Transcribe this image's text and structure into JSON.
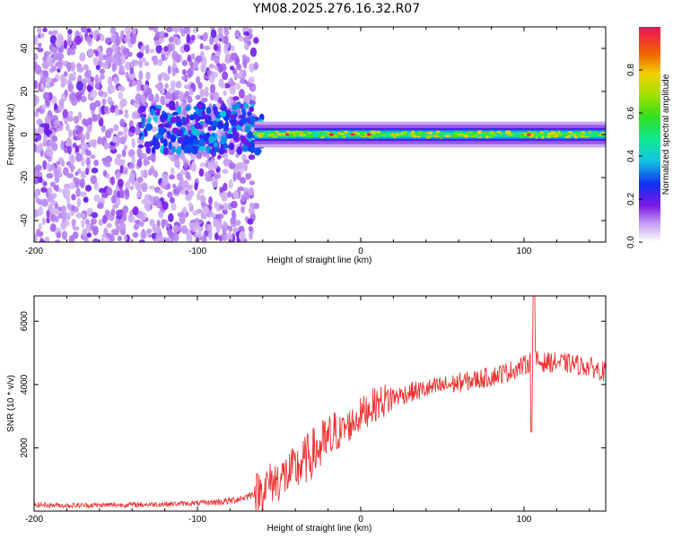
{
  "title": "YM08.2025.276.16.32.R07",
  "colors": {
    "snr_line": "#ee3333",
    "axis": "#000000"
  },
  "chart_data": [
    {
      "type": "heatmap",
      "xlabel": "Height of straight line (km)",
      "ylabel": "Frequency (Hz)",
      "xlim": [
        -200,
        150
      ],
      "ylim": [
        -50,
        50
      ],
      "xticks": [
        -200,
        -100,
        0,
        100
      ],
      "xtick_labels": [
        "-200",
        "-100",
        "0",
        "100"
      ],
      "yticks": [
        -40,
        -20,
        0,
        20,
        40
      ],
      "ytick_labels": [
        "-40",
        "-20",
        "0",
        "20",
        "40"
      ],
      "colorbar": {
        "label": "Normalized spectral amplitude",
        "range": [
          0,
          1
        ],
        "ticks": [
          0.0,
          0.2,
          0.4,
          0.6,
          0.8
        ],
        "tick_labels": [
          "0.0",
          "0.2",
          "0.4",
          "0.6",
          "0.8"
        ]
      },
      "description_regions": [
        {
          "x_range": [
            -200,
            -65
          ],
          "pattern": "broadband noise, low amplitude 0.1-0.3"
        },
        {
          "x_range": [
            -130,
            -60
          ],
          "pattern": "energy concentrating near 0 Hz, amplitude 0.2-0.5"
        },
        {
          "x_range": [
            -60,
            150
          ],
          "pattern": "narrow band at 0 Hz, amplitude 0.4-1.0"
        }
      ],
      "peaks": [
        {
          "x": -45,
          "freq": 0,
          "amp": 0.95
        },
        {
          "x": -18,
          "freq": 0,
          "amp": 1.0
        },
        {
          "x": -5,
          "freq": 0,
          "amp": 0.95
        },
        {
          "x": 5,
          "freq": 0,
          "amp": 1.0
        },
        {
          "x": 103,
          "freq": 0,
          "amp": 0.95
        }
      ]
    },
    {
      "type": "line",
      "xlabel": "Height of straight line (km)",
      "ylabel": "SNR (10 * v/v)",
      "xlim": [
        -200,
        150
      ],
      "ylim": [
        0,
        6800
      ],
      "xticks": [
        -200,
        -100,
        0,
        100
      ],
      "xtick_labels": [
        "-200",
        "-100",
        "0",
        "100"
      ],
      "yticks": [
        2000,
        4000,
        6000
      ],
      "ytick_labels": [
        "2000",
        "4000",
        "6000"
      ],
      "series": [
        {
          "name": "SNR",
          "x": [
            -200,
            -180,
            -160,
            -140,
            -120,
            -100,
            -90,
            -80,
            -70,
            -60,
            -55,
            -50,
            -45,
            -40,
            -35,
            -30,
            -25,
            -20,
            -15,
            -10,
            -5,
            0,
            5,
            10,
            20,
            30,
            40,
            50,
            60,
            70,
            80,
            90,
            95,
            100,
            103,
            106,
            110,
            120,
            130,
            140,
            150
          ],
          "y": [
            200,
            180,
            190,
            200,
            220,
            250,
            280,
            320,
            450,
            700,
            900,
            1000,
            1150,
            1300,
            1550,
            1800,
            2000,
            2200,
            2400,
            2600,
            2800,
            3050,
            3250,
            3400,
            3600,
            3750,
            3850,
            3950,
            4050,
            4150,
            4250,
            4400,
            4500,
            4600,
            4700,
            4800,
            4700,
            4700,
            4650,
            4550,
            4400
          ]
        }
      ],
      "annotations": [
        {
          "x": 106,
          "y": 6800,
          "note": "spike"
        },
        {
          "x": 105,
          "y": 2500,
          "note": "dip"
        }
      ]
    }
  ]
}
